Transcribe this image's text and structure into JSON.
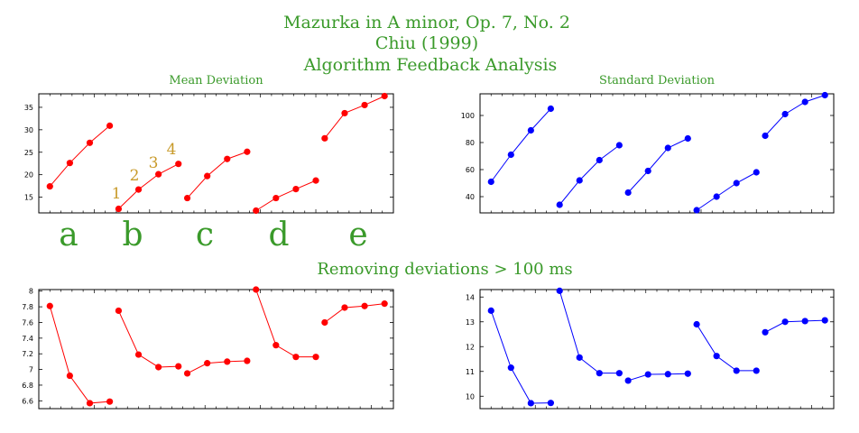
{
  "titles": {
    "line1": "Mazurka in A minor, Op. 7, No. 2",
    "line2": "Chiu (1999)",
    "line3": "Algorithm Feedback Analysis",
    "section": "Removing deviations > 100 ms"
  },
  "group_labels": [
    "a",
    "b",
    "c",
    "d",
    "e"
  ],
  "index_labels": [
    "1",
    "2",
    "3",
    "4"
  ],
  "chart_data": [
    {
      "type": "line",
      "title": "Mean Deviation",
      "color": "#ff0000",
      "ylim": [
        11.5,
        38
      ],
      "yticks": [
        15,
        20,
        25,
        30,
        35
      ],
      "series": [
        {
          "values": [
            17.4,
            22.6,
            27.1,
            30.9
          ]
        },
        {
          "values": [
            12.4,
            16.7,
            20.1,
            22.4
          ]
        },
        {
          "values": [
            14.8,
            19.7,
            23.5,
            25.1
          ]
        },
        {
          "values": [
            12.0,
            14.8,
            16.8,
            18.7
          ]
        },
        {
          "values": [
            28.1,
            33.7,
            35.5,
            37.5
          ]
        }
      ]
    },
    {
      "type": "line",
      "title": "Standard Deviation",
      "color": "#0000ff",
      "ylim": [
        28,
        116
      ],
      "yticks": [
        40,
        60,
        80,
        100
      ],
      "series": [
        {
          "values": [
            51,
            71,
            89,
            105
          ]
        },
        {
          "values": [
            34,
            52,
            67,
            78
          ]
        },
        {
          "values": [
            43,
            59,
            76,
            83
          ]
        },
        {
          "values": [
            30,
            40,
            50,
            58
          ]
        },
        {
          "values": [
            85,
            101,
            110,
            115
          ]
        }
      ]
    },
    {
      "type": "line",
      "title": "",
      "color": "#ff0000",
      "ylim": [
        6.5,
        8.02
      ],
      "yticks": [
        6.6,
        6.8,
        7,
        7.2,
        7.4,
        7.6,
        7.8,
        8
      ],
      "ytick_labels": [
        "6.6",
        "6.8",
        "7",
        "7.2",
        "7.4",
        "7.6",
        "7.8",
        "8"
      ],
      "series": [
        {
          "values": [
            7.81,
            6.92,
            6.57,
            6.59
          ]
        },
        {
          "values": [
            7.75,
            7.19,
            7.03,
            7.04
          ]
        },
        {
          "values": [
            6.95,
            7.08,
            7.1,
            7.11
          ]
        },
        {
          "values": [
            8.02,
            7.31,
            7.16,
            7.16
          ]
        },
        {
          "values": [
            7.6,
            7.79,
            7.81,
            7.84
          ]
        }
      ]
    },
    {
      "type": "line",
      "title": "",
      "color": "#0000ff",
      "ylim": [
        9.5,
        14.3
      ],
      "yticks": [
        10,
        11,
        12,
        13,
        14
      ],
      "series": [
        {
          "values": [
            13.45,
            11.15,
            9.72,
            9.73
          ]
        },
        {
          "values": [
            14.25,
            11.56,
            10.93,
            10.93
          ]
        },
        {
          "values": [
            10.63,
            10.88,
            10.89,
            10.91
          ]
        },
        {
          "values": [
            12.9,
            11.62,
            11.03,
            11.03
          ]
        },
        {
          "values": [
            12.58,
            13.0,
            13.03,
            13.06
          ]
        }
      ]
    }
  ]
}
